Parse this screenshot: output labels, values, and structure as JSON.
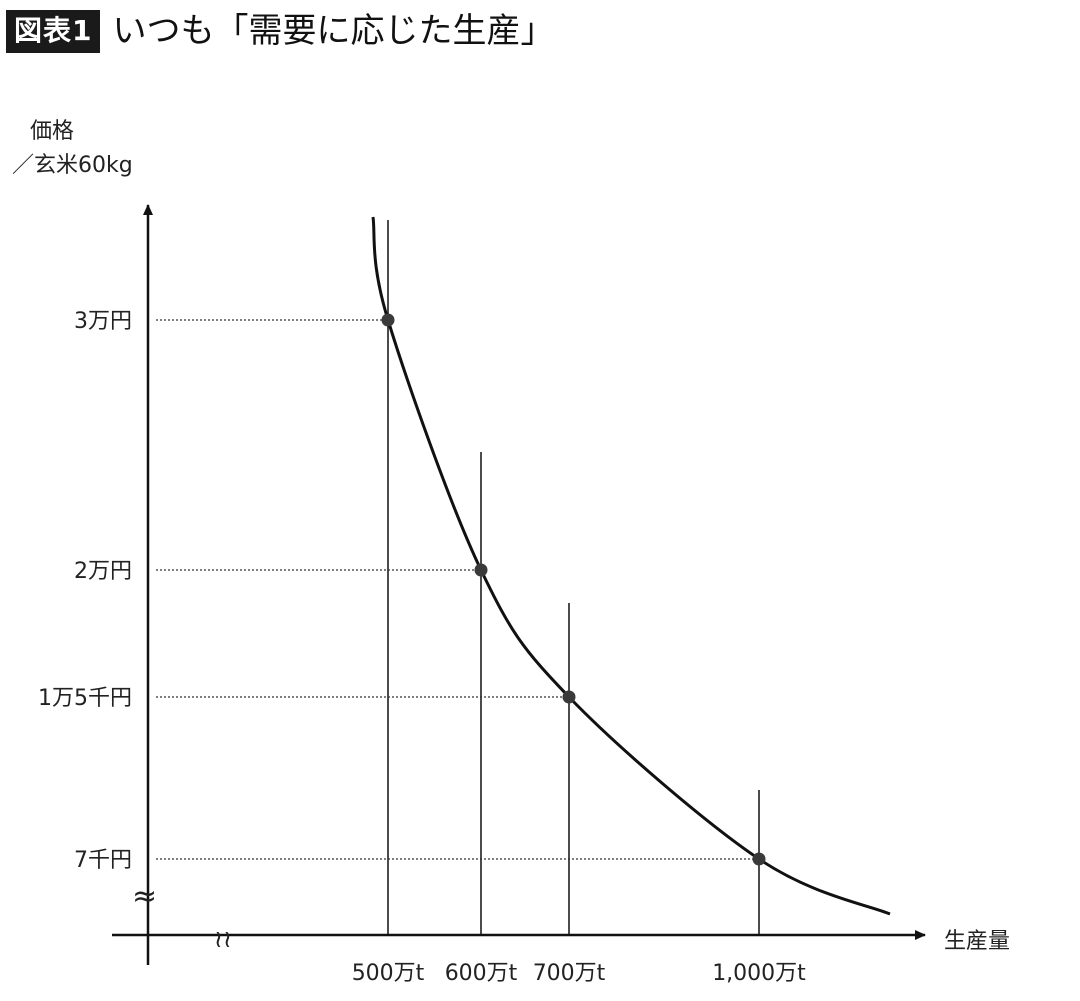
{
  "header": {
    "badge": "図表1",
    "title": "いつも「需要に応じた生産」"
  },
  "chart_data": {
    "type": "line",
    "title": "",
    "ylabel_line1": "価格",
    "ylabel_line2": "／玄米60kg",
    "xlabel": "生産量",
    "axis_break_symbol": "≈",
    "axis_break_symbol_x": "≀≀",
    "x_ticks": [
      "500万t",
      "600万t",
      "700万t",
      "1,000万t"
    ],
    "y_ticks": [
      "3万円",
      "2万円",
      "1万5千円",
      "7千円"
    ],
    "points": [
      {
        "x": 500,
        "y": 30000,
        "x_label": "500万t",
        "y_label": "3万円"
      },
      {
        "x": 600,
        "y": 20000,
        "x_label": "600万t",
        "y_label": "2万円"
      },
      {
        "x": 700,
        "y": 15000,
        "x_label": "700万t",
        "y_label": "1万5千円"
      },
      {
        "x": 1000,
        "y": 7000,
        "x_label": "1,000万t",
        "y_label": "7千円"
      }
    ],
    "curve": "smooth decreasing demand curve through all points",
    "grid": false,
    "legend": "none"
  }
}
